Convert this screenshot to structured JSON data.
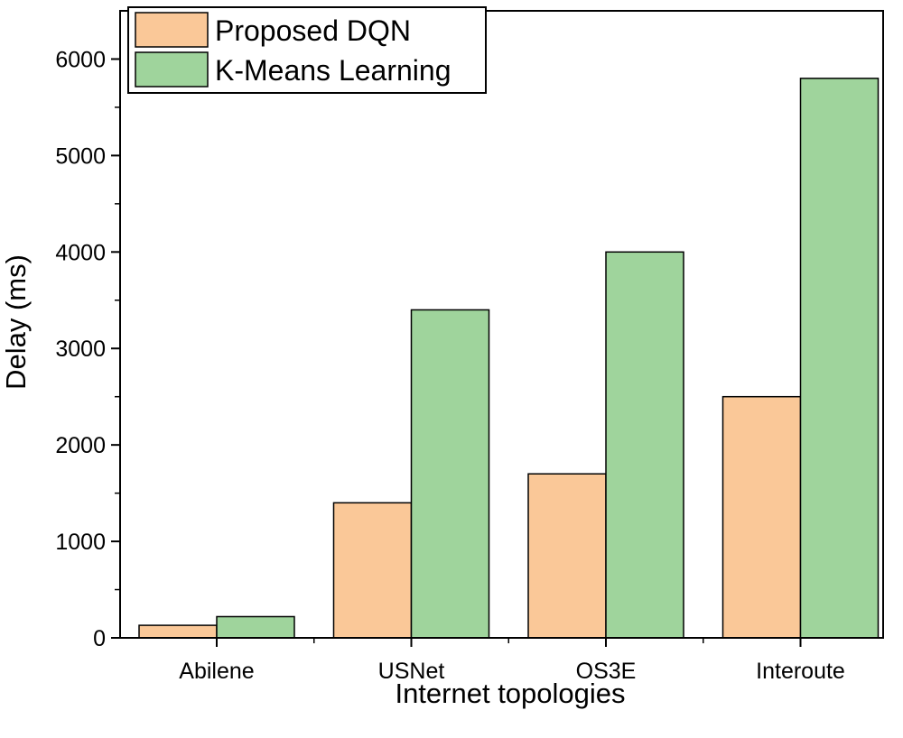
{
  "chart_data": {
    "type": "bar",
    "title": "",
    "xlabel": "Internet topologies",
    "ylabel": "Delay (ms)",
    "categories": [
      "Abilene",
      "USNet",
      "OS3E",
      "Interoute"
    ],
    "series": [
      {
        "name": "Proposed DQN",
        "values": [
          130,
          1400,
          1700,
          2500
        ],
        "color": "#FAC898"
      },
      {
        "name": "K-Means Learning",
        "values": [
          220,
          3400,
          4000,
          5800
        ],
        "color": "#9FD49C"
      }
    ],
    "ylim": [
      0,
      6500
    ],
    "yticks": [
      0,
      1000,
      2000,
      3000,
      4000,
      5000,
      6000
    ],
    "grid": false,
    "legend_position": "top-left"
  }
}
